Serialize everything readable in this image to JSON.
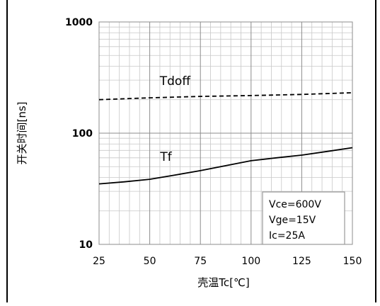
{
  "chart_data": {
    "type": "line",
    "title": "",
    "xlabel": "壳温Tc[℃]",
    "ylabel": "开关时间[ns]",
    "x_ticks": [
      25,
      50,
      75,
      100,
      125,
      150
    ],
    "y_ticks": [
      10,
      100,
      1000
    ],
    "y_scale": "log",
    "xlim": [
      25,
      150
    ],
    "ylim": [
      10,
      1000
    ],
    "grid": true,
    "series": [
      {
        "name": "Tdoff",
        "line_style": "dashed",
        "color": "#000000",
        "x": [
          25,
          50,
          75,
          100,
          125,
          150
        ],
        "y": [
          200,
          208,
          214,
          218,
          223,
          231
        ]
      },
      {
        "name": "Tf",
        "line_style": "solid",
        "color": "#000000",
        "x": [
          25,
          37.5,
          50,
          62.5,
          75,
          87.5,
          100,
          112.5,
          125,
          137.5,
          150
        ],
        "y": [
          35,
          36.5,
          38.5,
          42,
          46,
          51,
          56.5,
          60,
          63.5,
          68.5,
          74
        ]
      }
    ],
    "legend_box": {
      "lines": [
        "Vce=600V",
        "Vge=15V",
        "Ic=25A"
      ],
      "placement": "bottom-right"
    }
  }
}
